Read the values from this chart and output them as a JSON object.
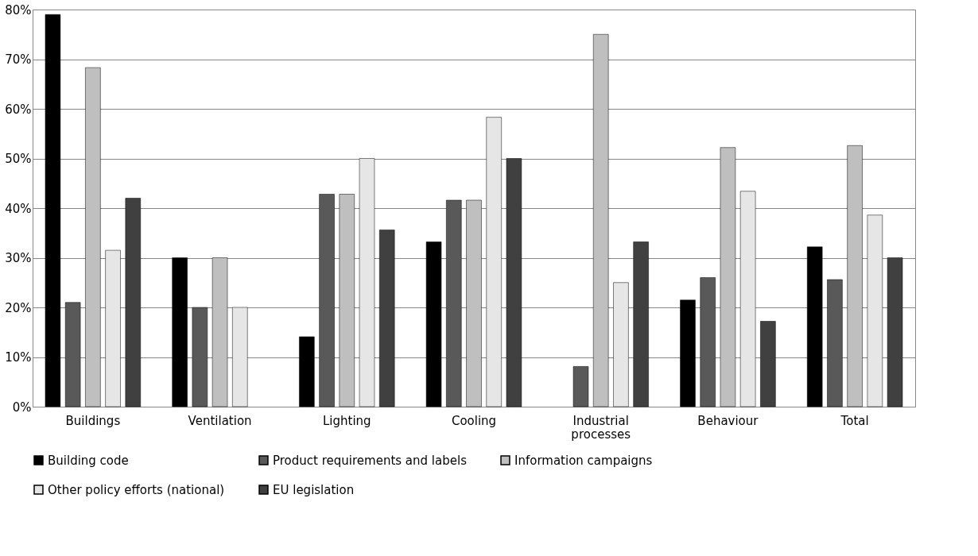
{
  "chart_data": {
    "type": "bar",
    "categories": [
      "Buildings",
      "Ventilation",
      "Lighting",
      "Cooling",
      "Industrial processes",
      "Behaviour",
      "Total"
    ],
    "series": [
      {
        "name": "Building code",
        "color": "#000000",
        "values": [
          79,
          30,
          14.1,
          33.2,
          null,
          21.5,
          32.2
        ]
      },
      {
        "name": "Product requirements and labels",
        "color": "#595959",
        "values": [
          21,
          20,
          42.8,
          41.6,
          8.1,
          26,
          25.6
        ]
      },
      {
        "name": "Information campaigns",
        "color": "#bfbfbf",
        "values": [
          68.3,
          30,
          42.8,
          41.6,
          75,
          52.2,
          52.6
        ]
      },
      {
        "name": "Other policy efforts (national)",
        "color": "#e6e6e6",
        "values": [
          31.5,
          20,
          50,
          58.3,
          25,
          43.4,
          38.6
        ]
      },
      {
        "name": "EU legislation",
        "color": "#404040",
        "values": [
          42,
          null,
          35.6,
          50,
          33.2,
          17.2,
          30
        ]
      }
    ],
    "ylim": [
      0,
      80
    ],
    "yticks": [
      {
        "value": 0,
        "label": "0%"
      },
      {
        "value": 10,
        "label": "10%"
      },
      {
        "value": 20,
        "label": "20%"
      },
      {
        "value": 30,
        "label": "30%"
      },
      {
        "value": 40,
        "label": "40%"
      },
      {
        "value": 50,
        "label": "50%"
      },
      {
        "value": 60,
        "label": "60%"
      },
      {
        "value": 70,
        "label": "70%"
      },
      {
        "value": 80,
        "label": "80%"
      }
    ],
    "grid": "y",
    "legend": "bottom"
  }
}
